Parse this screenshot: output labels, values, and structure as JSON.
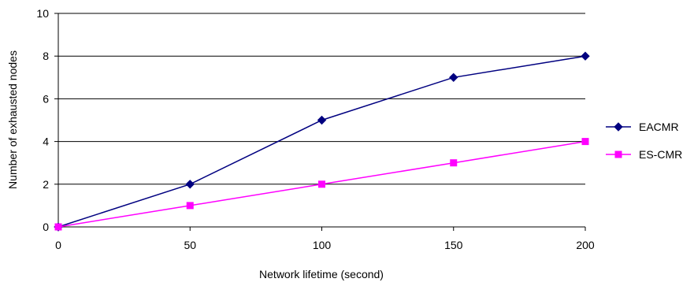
{
  "chart_data": {
    "type": "line",
    "x": [
      0,
      50,
      100,
      150,
      200
    ],
    "xlabel": "Network lifetime (second)",
    "ylabel": "Number of exhausted nodes",
    "xlim": [
      0,
      200
    ],
    "ylim": [
      0,
      10
    ],
    "x_ticks": [
      "0",
      "50",
      "100",
      "150",
      "200"
    ],
    "y_ticks": [
      "0",
      "2",
      "4",
      "6",
      "8",
      "10"
    ],
    "grid": "horizontal",
    "legend_position": "right",
    "series": [
      {
        "name": "EACMR",
        "values": [
          0,
          2,
          5,
          7,
          8
        ],
        "color": "#000080",
        "marker": "diamond"
      },
      {
        "name": "ES-CMR",
        "values": [
          0,
          1,
          2,
          3,
          4
        ],
        "color": "#FF00FF",
        "marker": "square"
      }
    ]
  }
}
